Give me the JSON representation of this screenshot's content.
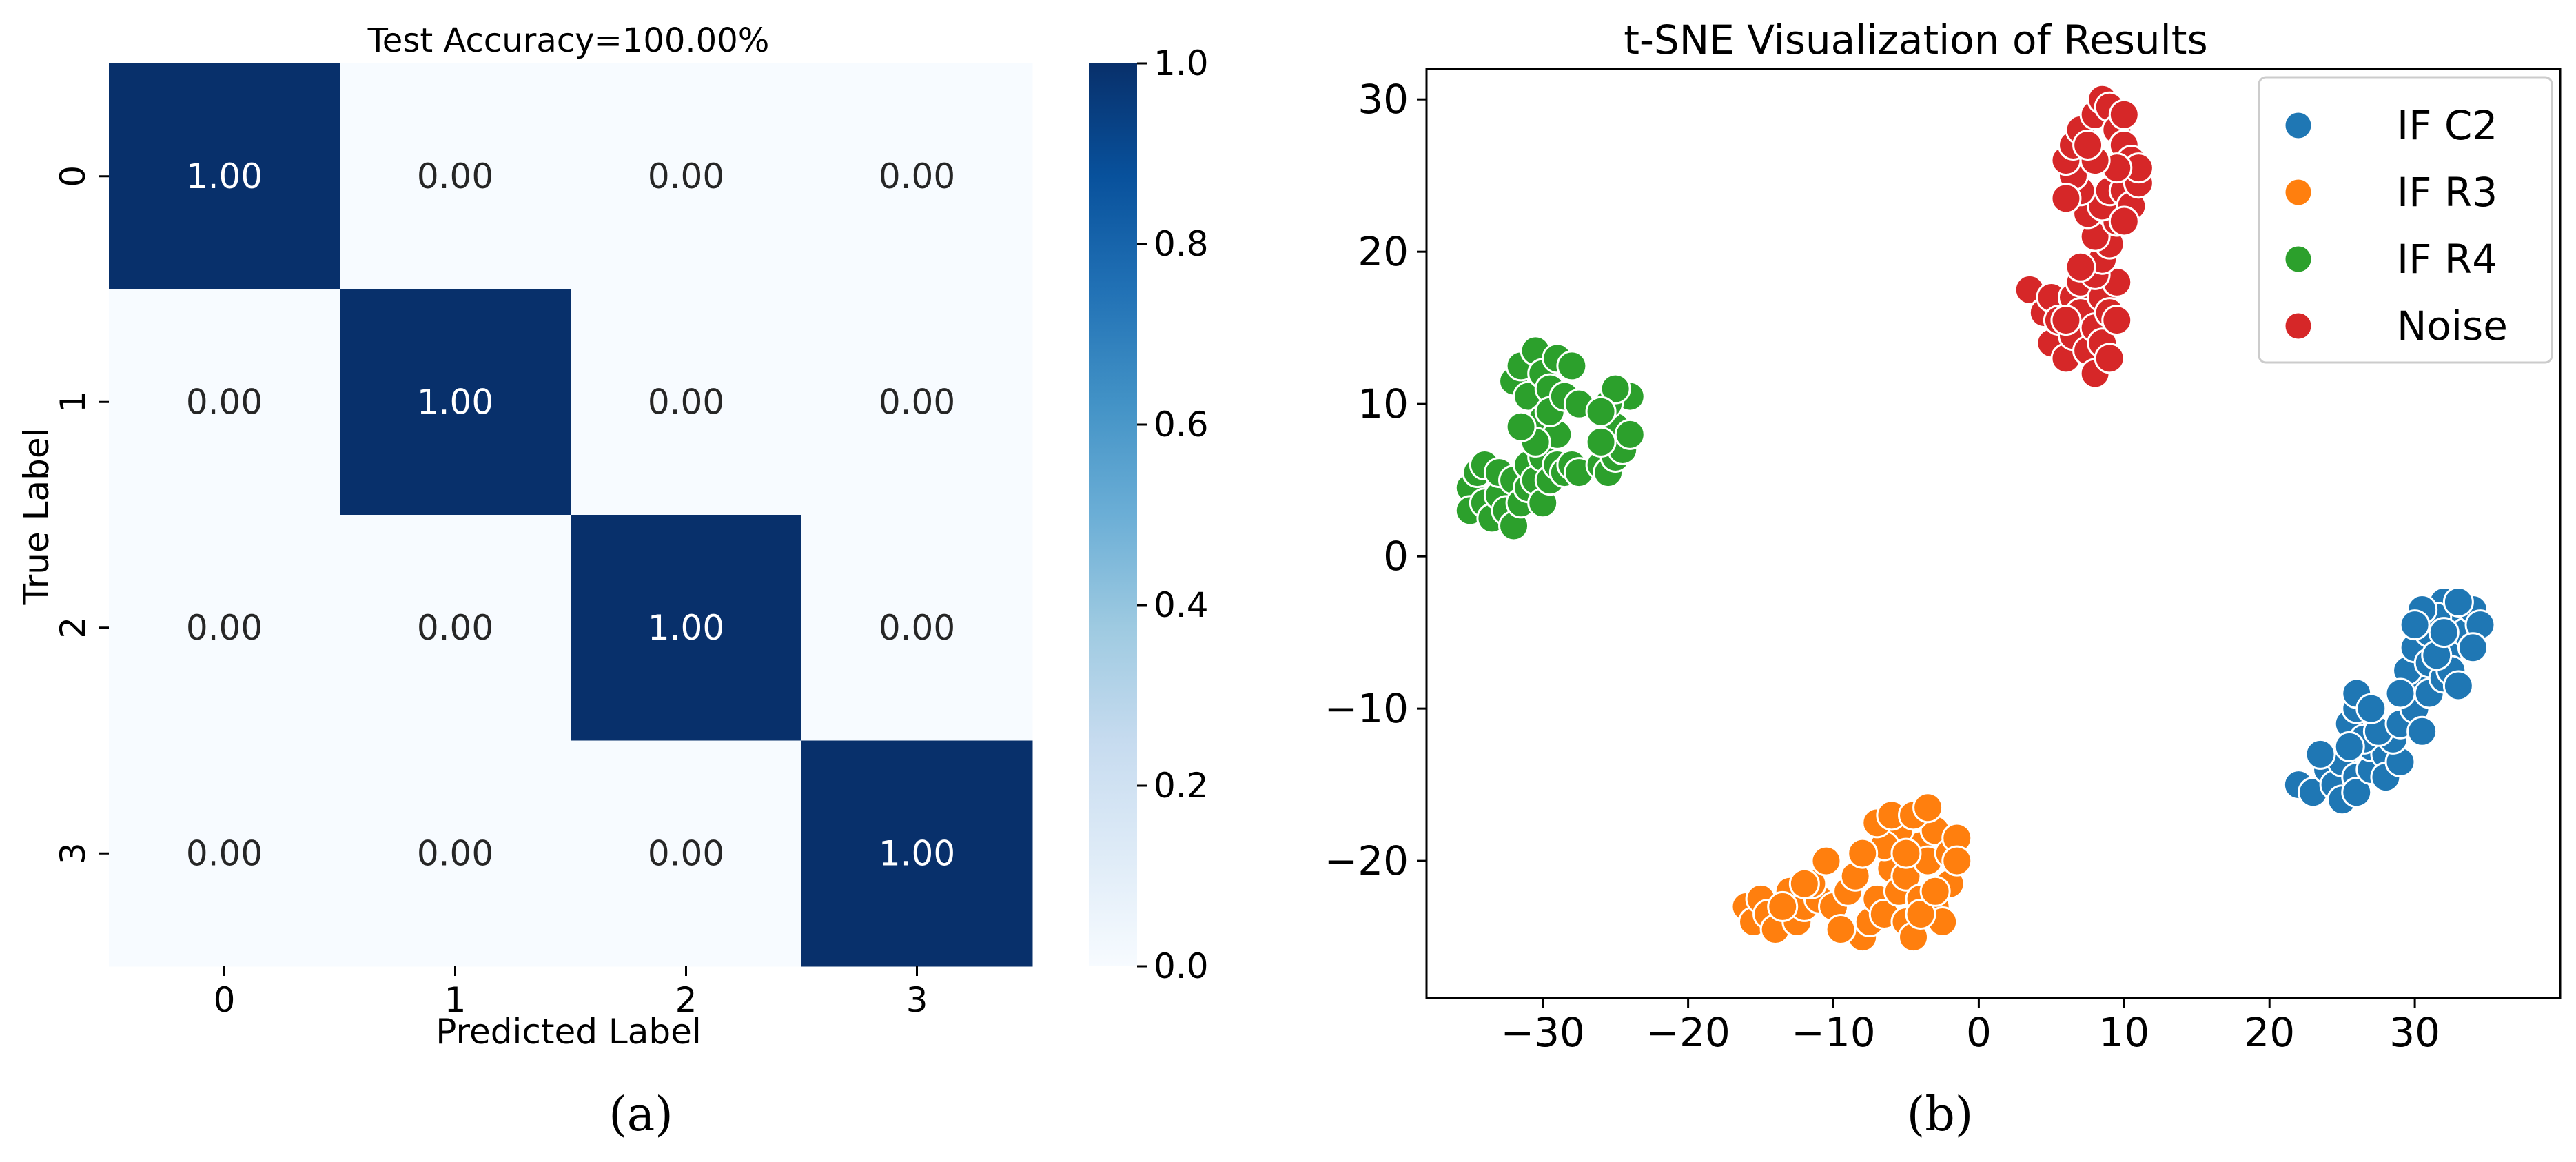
{
  "chart_data": [
    {
      "type": "heatmap",
      "title": "Test Accuracy=100.00%",
      "xlabel": "Predicted Label",
      "ylabel": "True Label",
      "x_ticks": [
        "0",
        "1",
        "2",
        "3"
      ],
      "y_ticks": [
        "0",
        "1",
        "2",
        "3"
      ],
      "matrix": [
        [
          1.0,
          0.0,
          0.0,
          0.0
        ],
        [
          0.0,
          1.0,
          0.0,
          0.0
        ],
        [
          0.0,
          0.0,
          1.0,
          0.0
        ],
        [
          0.0,
          0.0,
          0.0,
          1.0
        ]
      ],
      "cell_labels": [
        [
          "1.00",
          "0.00",
          "0.00",
          "0.00"
        ],
        [
          "0.00",
          "1.00",
          "0.00",
          "0.00"
        ],
        [
          "0.00",
          "0.00",
          "1.00",
          "0.00"
        ],
        [
          "0.00",
          "0.00",
          "0.00",
          "1.00"
        ]
      ],
      "colorbar": {
        "range": [
          0.0,
          1.0
        ],
        "ticks": [
          "0.0",
          "0.2",
          "0.4",
          "0.6",
          "0.8",
          "1.0"
        ],
        "colormap": "Blues",
        "low_color": "#f7fbff",
        "high_color": "#08306b"
      },
      "panel_label": "(a)"
    },
    {
      "type": "scatter",
      "title": "t-SNE Visualization of Results",
      "xlabel": "",
      "ylabel": "",
      "xlim": [
        -38,
        40
      ],
      "ylim": [
        -29,
        32
      ],
      "x_ticks": [
        "−30",
        "−20",
        "−10",
        "0",
        "10",
        "20",
        "30"
      ],
      "y_ticks": [
        "−20",
        "−10",
        "0",
        "10",
        "20",
        "30"
      ],
      "legend_position": "top-right",
      "panel_label": "(b)",
      "series": [
        {
          "name": "IF C2",
          "color": "#1f77b4",
          "points": [
            [
              22,
              -15
            ],
            [
              23,
              -15.5
            ],
            [
              24,
              -14
            ],
            [
              24.5,
              -15
            ],
            [
              25,
              -16
            ],
            [
              25,
              -13.5
            ],
            [
              26,
              -14.5
            ],
            [
              26,
              -15.5
            ],
            [
              23.5,
              -13
            ],
            [
              27,
              -14
            ],
            [
              27,
              -12.5
            ],
            [
              28,
              -13
            ],
            [
              28,
              -14.5
            ],
            [
              29,
              -13.5
            ],
            [
              28.5,
              -12
            ],
            [
              25.5,
              -11
            ],
            [
              26,
              -10
            ],
            [
              26.5,
              -12
            ],
            [
              25.5,
              -12.5
            ],
            [
              27.5,
              -11.5
            ],
            [
              29,
              -11
            ],
            [
              30,
              -10
            ],
            [
              30.5,
              -8.5
            ],
            [
              31,
              -9
            ],
            [
              29.5,
              -7.5
            ],
            [
              30,
              -6
            ],
            [
              31,
              -5
            ],
            [
              31,
              -7
            ],
            [
              32,
              -8
            ],
            [
              32.5,
              -6
            ],
            [
              33,
              -4
            ],
            [
              33.5,
              -5
            ],
            [
              34,
              -3.5
            ],
            [
              34.5,
              -4.5
            ],
            [
              32,
              -3
            ],
            [
              31.5,
              -4
            ],
            [
              30.5,
              -3.5
            ],
            [
              32.5,
              -7.5
            ],
            [
              33,
              -8.5
            ],
            [
              31.5,
              -6.5
            ],
            [
              30,
              -4.5
            ],
            [
              34,
              -6
            ],
            [
              33,
              -3
            ],
            [
              32,
              -5
            ],
            [
              26,
              -9
            ],
            [
              27,
              -10
            ],
            [
              29,
              -9
            ],
            [
              30.5,
              -11.5
            ]
          ]
        },
        {
          "name": "IF R3",
          "color": "#ff7f0e",
          "points": [
            [
              -16,
              -23
            ],
            [
              -15.5,
              -24
            ],
            [
              -15,
              -22.5
            ],
            [
              -14.5,
              -23.5
            ],
            [
              -14,
              -24.5
            ],
            [
              -13,
              -22
            ],
            [
              -12.5,
              -24
            ],
            [
              -12,
              -23
            ],
            [
              -11,
              -22.5
            ],
            [
              -11.5,
              -21.5
            ],
            [
              -10.5,
              -20
            ],
            [
              -10,
              -23
            ],
            [
              -9,
              -22
            ],
            [
              -8.5,
              -21
            ],
            [
              -8,
              -25
            ],
            [
              -7.5,
              -24
            ],
            [
              -7,
              -22.5
            ],
            [
              -6.5,
              -23.5
            ],
            [
              -6,
              -20.5
            ],
            [
              -5.5,
              -22
            ],
            [
              -5,
              -21
            ],
            [
              -5,
              -24
            ],
            [
              -4.5,
              -25
            ],
            [
              -4,
              -22.5
            ],
            [
              -4,
              -19
            ],
            [
              -3.5,
              -20
            ],
            [
              -3,
              -23
            ],
            [
              -3,
              -18
            ],
            [
              -2,
              -19.5
            ],
            [
              -2,
              -21.5
            ],
            [
              -1.5,
              -18.5
            ],
            [
              -1.5,
              -20
            ],
            [
              -5.5,
              -18
            ],
            [
              -6.5,
              -19
            ],
            [
              -7,
              -17.5
            ],
            [
              -6,
              -17
            ],
            [
              -4.5,
              -17
            ],
            [
              -3.5,
              -16.5
            ],
            [
              -8,
              -19.5
            ],
            [
              -2.5,
              -24
            ],
            [
              -4,
              -23.5
            ],
            [
              -9.5,
              -24.5
            ],
            [
              -13.5,
              -23
            ],
            [
              -12,
              -21.5
            ],
            [
              -3,
              -22
            ],
            [
              -5,
              -19.5
            ]
          ]
        },
        {
          "name": "IF R4",
          "color": "#2ca02c",
          "points": [
            [
              -35,
              4.5
            ],
            [
              -35,
              3
            ],
            [
              -34.5,
              5.5
            ],
            [
              -34,
              3.5
            ],
            [
              -34,
              6
            ],
            [
              -33.5,
              2.5
            ],
            [
              -33,
              4
            ],
            [
              -33,
              5.5
            ],
            [
              -32.5,
              3
            ],
            [
              -32,
              2
            ],
            [
              -32,
              5
            ],
            [
              -31.5,
              3.5
            ],
            [
              -31,
              4.5
            ],
            [
              -31,
              6
            ],
            [
              -30.5,
              5
            ],
            [
              -30,
              3.5
            ],
            [
              -30,
              6.5
            ],
            [
              -29.5,
              5
            ],
            [
              -29,
              6
            ],
            [
              -28.5,
              5.5
            ],
            [
              -28,
              6
            ],
            [
              -27.5,
              5.5
            ],
            [
              -32,
              11.5
            ],
            [
              -31.5,
              12.5
            ],
            [
              -31,
              10.5
            ],
            [
              -30.5,
              13.5
            ],
            [
              -30,
              12
            ],
            [
              -29.5,
              11
            ],
            [
              -29,
              13
            ],
            [
              -30,
              9
            ],
            [
              -29,
              8
            ],
            [
              -30.5,
              7.5
            ],
            [
              -29.5,
              9.5
            ],
            [
              -28.5,
              10.5
            ],
            [
              -28,
              12.5
            ],
            [
              -27.5,
              10
            ],
            [
              -31.5,
              8.5
            ],
            [
              -26,
              6
            ],
            [
              -25.5,
              5.5
            ],
            [
              -25,
              6.5
            ],
            [
              -25,
              8.5
            ],
            [
              -24.5,
              7
            ],
            [
              -24,
              8
            ],
            [
              -24,
              10.5
            ],
            [
              -25.5,
              10
            ],
            [
              -25,
              11
            ],
            [
              -26,
              9.5
            ],
            [
              -26,
              7.5
            ]
          ]
        },
        {
          "name": "Noise",
          "color": "#d62728",
          "points": [
            [
              3.5,
              17.5
            ],
            [
              4.5,
              16
            ],
            [
              5,
              17
            ],
            [
              5,
              14
            ],
            [
              5.5,
              15.5
            ],
            [
              6,
              13
            ],
            [
              6.5,
              14.5
            ],
            [
              6.5,
              17
            ],
            [
              7,
              16
            ],
            [
              7,
              18
            ],
            [
              7.5,
              13.5
            ],
            [
              8,
              12
            ],
            [
              8,
              15
            ],
            [
              8.5,
              14
            ],
            [
              8.5,
              17
            ],
            [
              9,
              16
            ],
            [
              9,
              13
            ],
            [
              9.5,
              15.5
            ],
            [
              9.5,
              18
            ],
            [
              8,
              18.5
            ],
            [
              8.5,
              19.5
            ],
            [
              9,
              20.5
            ],
            [
              8,
              21
            ],
            [
              9.5,
              22
            ],
            [
              7.5,
              22.5
            ],
            [
              8.5,
              23
            ],
            [
              9,
              24
            ],
            [
              10,
              24
            ],
            [
              10.5,
              23
            ],
            [
              11,
              24.5
            ],
            [
              10,
              22
            ],
            [
              7,
              24
            ],
            [
              6.5,
              25
            ],
            [
              6,
              23.5
            ],
            [
              6,
              26
            ],
            [
              6.5,
              27
            ],
            [
              7,
              28
            ],
            [
              8,
              29
            ],
            [
              8.5,
              30
            ],
            [
              9,
              29.5
            ],
            [
              9.5,
              28
            ],
            [
              10,
              27
            ],
            [
              10.5,
              26
            ],
            [
              11,
              25.5
            ],
            [
              9.5,
              25.5
            ],
            [
              8,
              26
            ],
            [
              7.5,
              27
            ],
            [
              10,
              29
            ],
            [
              6,
              15.5
            ],
            [
              7,
              19
            ]
          ]
        }
      ]
    }
  ]
}
